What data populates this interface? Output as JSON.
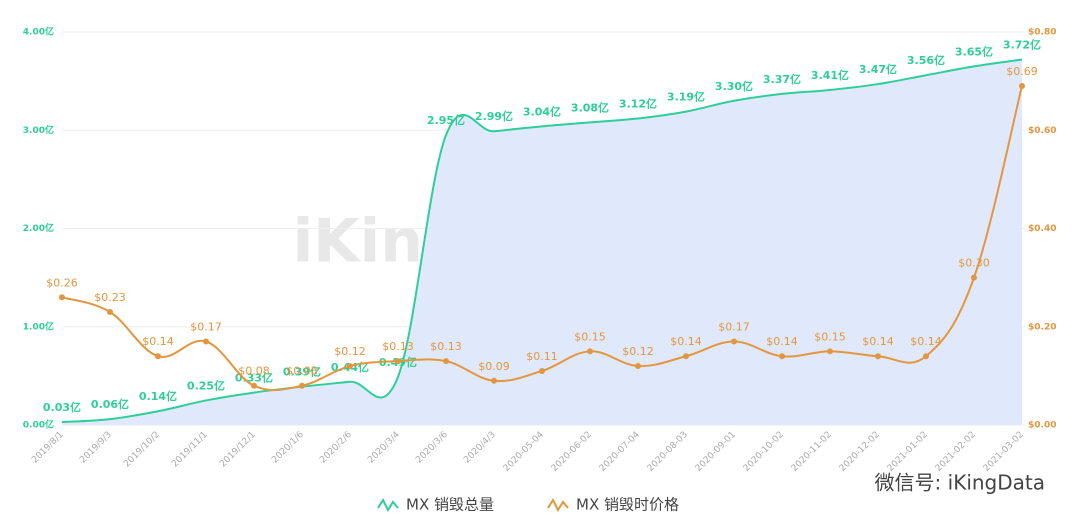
{
  "chart_data": {
    "type": "line",
    "watermark": "iKingData.com",
    "credit": "微信号: iKingData",
    "categories": [
      "2019/8/1",
      "2019/9/3",
      "2019/10/2",
      "2019/11/1",
      "2019/12/1",
      "2020/1/6",
      "2020/2/6",
      "2020/3/4",
      "2020/3/6",
      "2020/4/3",
      "2020-05-04",
      "2020-06-02",
      "2020-07-04",
      "2020-08-03",
      "2020-09-01",
      "2020-10-02",
      "2020-11-02",
      "2020-12-02",
      "2021-01-02",
      "2021-02-02",
      "2021-03-02"
    ],
    "series": [
      {
        "name": "MX 销毁总量",
        "color": "#2ecf97",
        "area_color": "#dfe9fb",
        "axis": "y",
        "values": [
          0.03,
          0.06,
          0.14,
          0.25,
          0.33,
          0.39,
          0.44,
          0.49,
          2.95,
          2.99,
          3.04,
          3.08,
          3.12,
          3.19,
          3.3,
          3.37,
          3.41,
          3.47,
          3.56,
          3.65,
          3.72
        ],
        "value_labels": [
          "0.03亿",
          "0.06亿",
          "0.14亿",
          "0.25亿",
          "0.33亿",
          "0.39亿",
          "0.44亿",
          "0.49亿",
          "2.95亿",
          "2.99亿",
          "3.04亿",
          "3.08亿",
          "3.12亿",
          "3.19亿",
          "3.30亿",
          "3.37亿",
          "3.41亿",
          "3.47亿",
          "3.56亿",
          "3.65亿",
          "3.72亿"
        ]
      },
      {
        "name": "MX 销毁时价格",
        "color": "#e3963e",
        "axis": "y2",
        "values": [
          0.26,
          0.23,
          0.14,
          0.17,
          0.08,
          0.08,
          0.12,
          0.13,
          0.13,
          0.09,
          0.11,
          0.15,
          0.12,
          0.14,
          0.17,
          0.14,
          0.15,
          0.14,
          0.14,
          0.3,
          0.69
        ],
        "value_labels": [
          "$0.26",
          "$0.23",
          "$0.14",
          "$0.17",
          "$0.08",
          "$0.08",
          "$0.12",
          "$0.13",
          "$0.13",
          "$0.09",
          "$0.11",
          "$0.15",
          "$0.12",
          "$0.14",
          "$0.17",
          "$0.14",
          "$0.15",
          "$0.14",
          "$0.14",
          "$0.30",
          "$0.69"
        ]
      }
    ],
    "ylim": [
      0,
      4
    ],
    "yticks": [
      {
        "value": 0,
        "label": "0.00亿"
      },
      {
        "value": 1,
        "label": "1.00亿"
      },
      {
        "value": 2,
        "label": "2.00亿"
      },
      {
        "value": 3,
        "label": "3.00亿"
      },
      {
        "value": 4,
        "label": "4.00亿"
      }
    ],
    "y2lim": [
      0,
      0.8
    ],
    "y2ticks": [
      {
        "value": 0,
        "label": "$0.00"
      },
      {
        "value": 0.2,
        "label": "$0.20"
      },
      {
        "value": 0.4,
        "label": "$0.40"
      },
      {
        "value": 0.6,
        "label": "$0.60"
      },
      {
        "value": 0.8,
        "label": "$0.80"
      }
    ],
    "grid": true
  }
}
